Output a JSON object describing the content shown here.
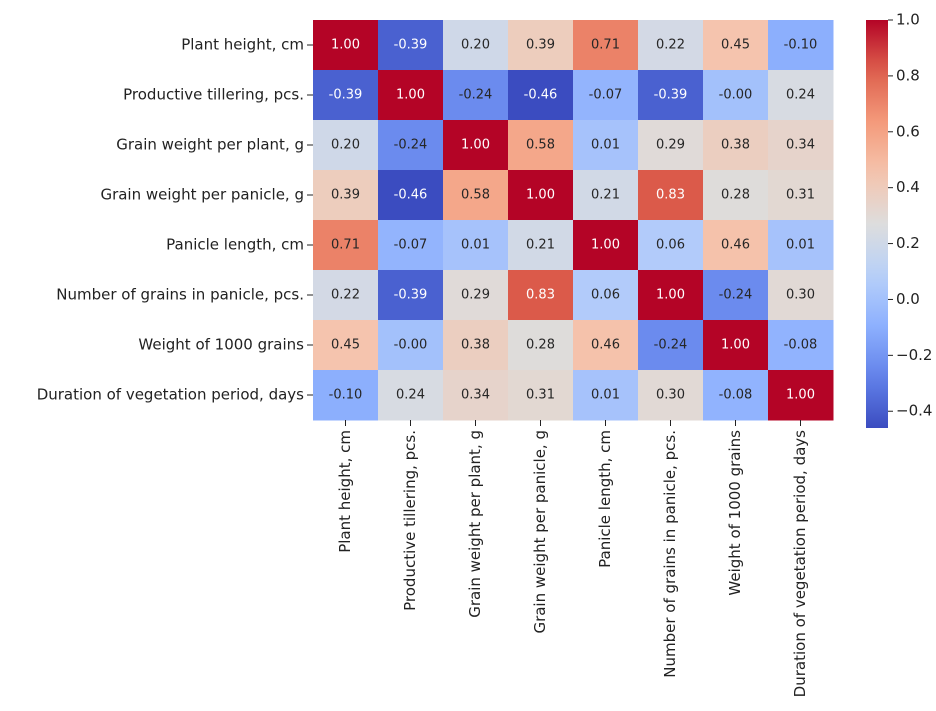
{
  "chart_data": {
    "type": "heatmap",
    "colormap": "coolwarm",
    "categories": [
      "Plant height, cm",
      "Productive tillering, pcs.",
      "Grain weight per plant, g",
      "Grain weight per panicle, g",
      "Panicle length, cm",
      "Number of grains in panicle, pcs.",
      "Weight of 1000 grains",
      "Duration of vegetation period, days"
    ],
    "values": [
      [
        1.0,
        -0.39,
        0.2,
        0.39,
        0.71,
        0.22,
        0.45,
        -0.1
      ],
      [
        -0.39,
        1.0,
        -0.24,
        -0.46,
        -0.07,
        -0.39,
        0,
        0.24
      ],
      [
        0.2,
        -0.24,
        1.0,
        0.58,
        0.01,
        0.29,
        0.38,
        0.34
      ],
      [
        0.39,
        -0.46,
        0.58,
        1.0,
        0.21,
        0.83,
        0.28,
        0.31
      ],
      [
        0.71,
        -0.07,
        0.01,
        0.21,
        1.0,
        0.06,
        0.46,
        0.01
      ],
      [
        0.22,
        -0.39,
        0.29,
        0.83,
        0.06,
        1.0,
        -0.24,
        0.3
      ],
      [
        0.45,
        0,
        0.38,
        0.28,
        0.46,
        -0.24,
        1.0,
        -0.08
      ],
      [
        -0.1,
        0.24,
        0.34,
        0.31,
        0.01,
        0.3,
        -0.08,
        1.0
      ]
    ],
    "value_labels": [
      [
        "1.00",
        "-0.39",
        "0.20",
        "0.39",
        "0.71",
        "0.22",
        "0.45",
        "-0.10"
      ],
      [
        "-0.39",
        "1.00",
        "-0.24",
        "-0.46",
        "-0.07",
        "-0.39",
        "-0.00",
        "0.24"
      ],
      [
        "0.20",
        "-0.24",
        "1.00",
        "0.58",
        "0.01",
        "0.29",
        "0.38",
        "0.34"
      ],
      [
        "0.39",
        "-0.46",
        "0.58",
        "1.00",
        "0.21",
        "0.83",
        "0.28",
        "0.31"
      ],
      [
        "0.71",
        "-0.07",
        "0.01",
        "0.21",
        "1.00",
        "0.06",
        "0.46",
        "0.01"
      ],
      [
        "0.22",
        "-0.39",
        "0.29",
        "0.83",
        "0.06",
        "1.00",
        "-0.24",
        "0.30"
      ],
      [
        "0.45",
        "-0.00",
        "0.38",
        "0.28",
        "0.46",
        "-0.24",
        "1.00",
        "-0.08"
      ],
      [
        "-0.10",
        "0.24",
        "0.34",
        "0.31",
        "0.01",
        "0.30",
        "-0.08",
        "1.00"
      ]
    ],
    "zlim": [
      -0.46,
      1.0
    ],
    "zticks": [
      {
        "value": -0.4,
        "label": "−0.4"
      },
      {
        "value": -0.2,
        "label": "−0.2"
      },
      {
        "value": 0.0,
        "label": "0.0"
      },
      0.2,
      0.4,
      0.6,
      0.8,
      {
        "value": 1.0,
        "label": "1.0"
      }
    ]
  }
}
